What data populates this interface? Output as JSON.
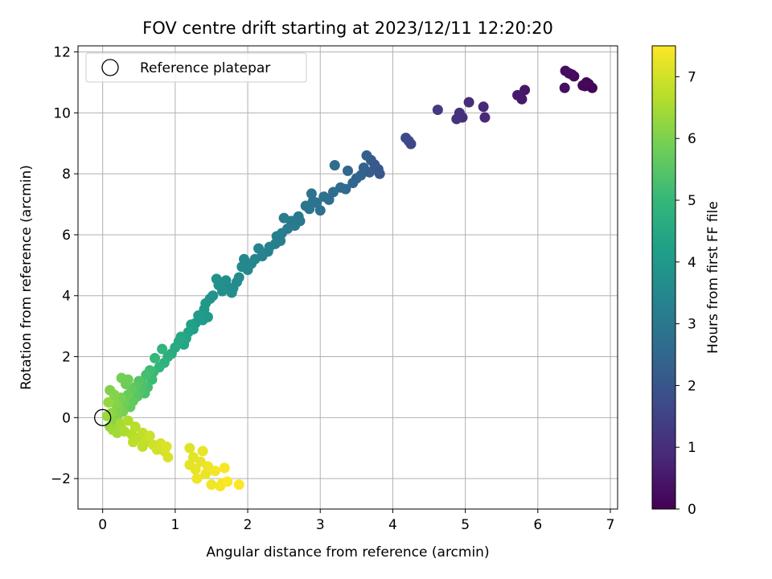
{
  "chart_data": {
    "type": "scatter",
    "title": "FOV centre drift starting at 2023/12/11 12:20:20",
    "xlabel": "Angular distance from reference (arcmin)",
    "ylabel": "Rotation from reference (arcmin)",
    "xlim": [
      -0.34,
      7.1
    ],
    "ylim": [
      -3.0,
      12.2
    ],
    "x_ticks": [
      0,
      1,
      2,
      3,
      4,
      5,
      6,
      7
    ],
    "y_ticks": [
      -2,
      0,
      2,
      4,
      6,
      8,
      10,
      12
    ],
    "x_tick_labels": [
      "0",
      "1",
      "2",
      "3",
      "4",
      "5",
      "6",
      "7"
    ],
    "y_tick_labels": [
      "−2",
      "0",
      "2",
      "4",
      "6",
      "8",
      "10",
      "12"
    ],
    "grid": true,
    "legend": {
      "placement": "top-left",
      "entries": [
        {
          "label": "Reference platepar",
          "marker": "open-circle"
        }
      ]
    },
    "reference_point": {
      "x": 0,
      "y": 0
    },
    "colorbar": {
      "label": "Hours from first FF file",
      "range": [
        0,
        7.5
      ],
      "ticks": [
        0,
        1,
        2,
        3,
        4,
        5,
        6,
        7
      ],
      "colormap": [
        "#440154",
        "#482878",
        "#3e4989",
        "#31688e",
        "#26828e",
        "#1f9e89",
        "#35b779",
        "#6ece58",
        "#b5de2b",
        "#fde725"
      ]
    },
    "points": [
      {
        "x": 6.75,
        "y": 10.82,
        "c": 0.03
      },
      {
        "x": 6.7,
        "y": 10.95,
        "c": 0.06
      },
      {
        "x": 6.65,
        "y": 10.88,
        "c": 0.09
      },
      {
        "x": 6.67,
        "y": 11.0,
        "c": 0.12
      },
      {
        "x": 6.62,
        "y": 10.9,
        "c": 0.15
      },
      {
        "x": 6.5,
        "y": 11.2,
        "c": 0.18
      },
      {
        "x": 6.47,
        "y": 11.26,
        "c": 0.21
      },
      {
        "x": 6.43,
        "y": 11.3,
        "c": 0.24
      },
      {
        "x": 6.38,
        "y": 11.38,
        "c": 0.27
      },
      {
        "x": 6.37,
        "y": 10.82,
        "c": 0.3
      },
      {
        "x": 5.82,
        "y": 10.75,
        "c": 0.45
      },
      {
        "x": 5.78,
        "y": 10.45,
        "c": 0.5
      },
      {
        "x": 5.72,
        "y": 10.58,
        "c": 0.55
      },
      {
        "x": 5.27,
        "y": 9.85,
        "c": 0.85
      },
      {
        "x": 5.25,
        "y": 10.2,
        "c": 0.9
      },
      {
        "x": 5.05,
        "y": 10.35,
        "c": 0.95
      },
      {
        "x": 4.96,
        "y": 9.85,
        "c": 1.0
      },
      {
        "x": 4.92,
        "y": 10.0,
        "c": 1.05
      },
      {
        "x": 4.88,
        "y": 9.8,
        "c": 1.1
      },
      {
        "x": 4.62,
        "y": 10.1,
        "c": 1.3
      },
      {
        "x": 4.25,
        "y": 8.98,
        "c": 1.6
      },
      {
        "x": 4.22,
        "y": 9.08,
        "c": 1.65
      },
      {
        "x": 4.18,
        "y": 9.18,
        "c": 1.7
      },
      {
        "x": 3.82,
        "y": 8.0,
        "c": 2.0
      },
      {
        "x": 3.8,
        "y": 8.15,
        "c": 2.05
      },
      {
        "x": 3.75,
        "y": 8.3,
        "c": 2.1
      },
      {
        "x": 3.7,
        "y": 8.45,
        "c": 2.15
      },
      {
        "x": 3.68,
        "y": 8.05,
        "c": 2.2
      },
      {
        "x": 3.64,
        "y": 8.6,
        "c": 2.25
      },
      {
        "x": 3.6,
        "y": 8.2,
        "c": 2.3
      },
      {
        "x": 3.56,
        "y": 7.95,
        "c": 2.35
      },
      {
        "x": 3.5,
        "y": 7.85,
        "c": 2.4
      },
      {
        "x": 3.45,
        "y": 7.7,
        "c": 2.45
      },
      {
        "x": 3.38,
        "y": 8.1,
        "c": 2.5
      },
      {
        "x": 3.35,
        "y": 7.5,
        "c": 2.55
      },
      {
        "x": 3.28,
        "y": 7.55,
        "c": 2.6
      },
      {
        "x": 3.2,
        "y": 8.28,
        "c": 2.62
      },
      {
        "x": 3.18,
        "y": 7.4,
        "c": 2.65
      },
      {
        "x": 3.12,
        "y": 7.15,
        "c": 2.7
      },
      {
        "x": 3.05,
        "y": 7.25,
        "c": 2.75
      },
      {
        "x": 3.0,
        "y": 6.8,
        "c": 2.8
      },
      {
        "x": 2.95,
        "y": 7.05,
        "c": 2.82
      },
      {
        "x": 2.9,
        "y": 7.1,
        "c": 2.85
      },
      {
        "x": 2.88,
        "y": 7.35,
        "c": 2.87
      },
      {
        "x": 2.85,
        "y": 6.85,
        "c": 2.9
      },
      {
        "x": 2.8,
        "y": 6.95,
        "c": 2.93
      },
      {
        "x": 2.72,
        "y": 6.45,
        "c": 2.97
      },
      {
        "x": 2.7,
        "y": 6.6,
        "c": 3.0
      },
      {
        "x": 2.65,
        "y": 6.3,
        "c": 3.05
      },
      {
        "x": 2.6,
        "y": 6.45,
        "c": 3.08
      },
      {
        "x": 2.55,
        "y": 6.2,
        "c": 3.1
      },
      {
        "x": 2.5,
        "y": 6.55,
        "c": 3.13
      },
      {
        "x": 2.47,
        "y": 6.05,
        "c": 3.17
      },
      {
        "x": 2.45,
        "y": 5.8,
        "c": 3.2
      },
      {
        "x": 2.4,
        "y": 5.95,
        "c": 3.22
      },
      {
        "x": 2.38,
        "y": 5.7,
        "c": 3.25
      },
      {
        "x": 2.3,
        "y": 5.6,
        "c": 3.3
      },
      {
        "x": 2.28,
        "y": 5.45,
        "c": 3.32
      },
      {
        "x": 2.2,
        "y": 5.3,
        "c": 3.35
      },
      {
        "x": 2.15,
        "y": 5.55,
        "c": 3.38
      },
      {
        "x": 2.1,
        "y": 5.2,
        "c": 3.4
      },
      {
        "x": 2.05,
        "y": 5.05,
        "c": 3.45
      },
      {
        "x": 2.0,
        "y": 4.85,
        "c": 3.5
      },
      {
        "x": 1.95,
        "y": 5.2,
        "c": 3.52
      },
      {
        "x": 1.92,
        "y": 4.95,
        "c": 3.55
      },
      {
        "x": 1.88,
        "y": 4.6,
        "c": 3.6
      },
      {
        "x": 1.85,
        "y": 4.45,
        "c": 3.62
      },
      {
        "x": 1.8,
        "y": 4.25,
        "c": 3.65
      },
      {
        "x": 1.78,
        "y": 4.1,
        "c": 3.68
      },
      {
        "x": 1.72,
        "y": 4.3,
        "c": 3.7
      },
      {
        "x": 1.7,
        "y": 4.5,
        "c": 3.72
      },
      {
        "x": 1.65,
        "y": 4.15,
        "c": 3.75
      },
      {
        "x": 1.6,
        "y": 4.35,
        "c": 3.78
      },
      {
        "x": 1.57,
        "y": 4.55,
        "c": 3.8
      },
      {
        "x": 1.52,
        "y": 4.0,
        "c": 3.85
      },
      {
        "x": 1.48,
        "y": 3.9,
        "c": 3.9
      },
      {
        "x": 1.42,
        "y": 3.75,
        "c": 3.95
      },
      {
        "x": 1.45,
        "y": 3.3,
        "c": 3.98
      },
      {
        "x": 1.4,
        "y": 3.55,
        "c": 4.0
      },
      {
        "x": 1.38,
        "y": 3.2,
        "c": 4.05
      },
      {
        "x": 1.32,
        "y": 3.35,
        "c": 4.1
      },
      {
        "x": 1.28,
        "y": 3.1,
        "c": 4.15
      },
      {
        "x": 1.25,
        "y": 2.9,
        "c": 4.2
      },
      {
        "x": 1.22,
        "y": 3.05,
        "c": 4.25
      },
      {
        "x": 1.18,
        "y": 2.8,
        "c": 4.3
      },
      {
        "x": 1.15,
        "y": 2.6,
        "c": 4.35
      },
      {
        "x": 1.12,
        "y": 2.4,
        "c": 4.4
      },
      {
        "x": 1.08,
        "y": 2.65,
        "c": 4.45
      },
      {
        "x": 1.05,
        "y": 2.5,
        "c": 4.5
      },
      {
        "x": 1.0,
        "y": 2.3,
        "c": 4.55
      },
      {
        "x": 0.95,
        "y": 2.1,
        "c": 4.6
      },
      {
        "x": 0.9,
        "y": 2.0,
        "c": 4.7
      },
      {
        "x": 0.85,
        "y": 1.8,
        "c": 4.8
      },
      {
        "x": 0.82,
        "y": 2.25,
        "c": 4.85
      },
      {
        "x": 0.78,
        "y": 1.65,
        "c": 4.9
      },
      {
        "x": 0.72,
        "y": 1.95,
        "c": 5.0
      },
      {
        "x": 0.7,
        "y": 1.5,
        "c": 5.05
      },
      {
        "x": 0.68,
        "y": 1.25,
        "c": 5.1
      },
      {
        "x": 0.65,
        "y": 1.55,
        "c": 5.15
      },
      {
        "x": 0.62,
        "y": 1.0,
        "c": 5.2
      },
      {
        "x": 0.6,
        "y": 1.4,
        "c": 5.25
      },
      {
        "x": 0.58,
        "y": 0.8,
        "c": 5.3
      },
      {
        "x": 0.55,
        "y": 1.1,
        "c": 5.35
      },
      {
        "x": 0.52,
        "y": 0.85,
        "c": 5.4
      },
      {
        "x": 0.5,
        "y": 1.2,
        "c": 5.45
      },
      {
        "x": 0.48,
        "y": 0.7,
        "c": 5.5
      },
      {
        "x": 0.45,
        "y": 1.0,
        "c": 5.55
      },
      {
        "x": 0.42,
        "y": 0.55,
        "c": 5.6
      },
      {
        "x": 0.4,
        "y": 0.9,
        "c": 5.65
      },
      {
        "x": 0.38,
        "y": 0.35,
        "c": 5.7
      },
      {
        "x": 0.35,
        "y": 0.75,
        "c": 5.75
      },
      {
        "x": 0.32,
        "y": 1.1,
        "c": 5.8
      },
      {
        "x": 0.3,
        "y": 0.5,
        "c": 5.85
      },
      {
        "x": 0.28,
        "y": 0.2,
        "c": 5.9
      },
      {
        "x": 0.25,
        "y": 0.65,
        "c": 5.95
      },
      {
        "x": 0.22,
        "y": 0.3,
        "c": 6.0
      },
      {
        "x": 0.2,
        "y": 0.05,
        "c": 6.05
      },
      {
        "x": 0.18,
        "y": 0.45,
        "c": 6.1
      },
      {
        "x": 0.15,
        "y": -0.15,
        "c": 6.15
      },
      {
        "x": 0.12,
        "y": 0.15,
        "c": 6.2
      },
      {
        "x": 0.1,
        "y": -0.3,
        "c": 6.25
      },
      {
        "x": 0.08,
        "y": 0.5,
        "c": 6.3
      },
      {
        "x": 0.06,
        "y": 0.05,
        "c": 6.35
      },
      {
        "x": 0.1,
        "y": 0.9,
        "c": 6.05
      },
      {
        "x": 0.16,
        "y": 0.75,
        "c": 6.1
      },
      {
        "x": 0.26,
        "y": 1.3,
        "c": 5.9
      },
      {
        "x": 0.35,
        "y": 1.25,
        "c": 5.85
      },
      {
        "x": 0.14,
        "y": -0.4,
        "c": 6.4
      },
      {
        "x": 0.2,
        "y": -0.5,
        "c": 6.45
      },
      {
        "x": 0.25,
        "y": -0.2,
        "c": 6.5
      },
      {
        "x": 0.3,
        "y": -0.45,
        "c": 6.55
      },
      {
        "x": 0.35,
        "y": -0.1,
        "c": 6.6
      },
      {
        "x": 0.4,
        "y": -0.55,
        "c": 6.65
      },
      {
        "x": 0.45,
        "y": -0.3,
        "c": 6.7
      },
      {
        "x": 0.5,
        "y": -0.65,
        "c": 6.75
      },
      {
        "x": 0.55,
        "y": -0.5,
        "c": 6.8
      },
      {
        "x": 0.6,
        "y": -0.8,
        "c": 6.85
      },
      {
        "x": 0.65,
        "y": -0.6,
        "c": 6.9
      },
      {
        "x": 0.7,
        "y": -0.9,
        "c": 6.95
      },
      {
        "x": 0.75,
        "y": -1.05,
        "c": 7.0
      },
      {
        "x": 0.8,
        "y": -0.85,
        "c": 7.02
      },
      {
        "x": 0.85,
        "y": -1.1,
        "c": 7.05
      },
      {
        "x": 0.9,
        "y": -1.3,
        "c": 7.08
      },
      {
        "x": 0.88,
        "y": -0.95,
        "c": 7.1
      },
      {
        "x": 0.42,
        "y": -0.8,
        "c": 6.75
      },
      {
        "x": 0.55,
        "y": -0.95,
        "c": 6.8
      },
      {
        "x": 1.2,
        "y": -1.0,
        "c": 7.15
      },
      {
        "x": 1.25,
        "y": -1.3,
        "c": 7.18
      },
      {
        "x": 1.2,
        "y": -1.55,
        "c": 7.2
      },
      {
        "x": 1.28,
        "y": -1.7,
        "c": 7.22
      },
      {
        "x": 1.35,
        "y": -1.45,
        "c": 7.25
      },
      {
        "x": 1.38,
        "y": -1.1,
        "c": 7.27
      },
      {
        "x": 1.42,
        "y": -1.85,
        "c": 7.3
      },
      {
        "x": 1.45,
        "y": -1.6,
        "c": 7.32
      },
      {
        "x": 1.5,
        "y": -2.2,
        "c": 7.35
      },
      {
        "x": 1.55,
        "y": -1.75,
        "c": 7.38
      },
      {
        "x": 1.62,
        "y": -2.25,
        "c": 7.4
      },
      {
        "x": 1.65,
        "y": -2.15,
        "c": 7.42
      },
      {
        "x": 1.68,
        "y": -1.65,
        "c": 7.44
      },
      {
        "x": 1.72,
        "y": -2.1,
        "c": 7.46
      },
      {
        "x": 1.88,
        "y": -2.2,
        "c": 7.5
      },
      {
        "x": 1.3,
        "y": -2.0,
        "c": 7.33
      }
    ]
  }
}
